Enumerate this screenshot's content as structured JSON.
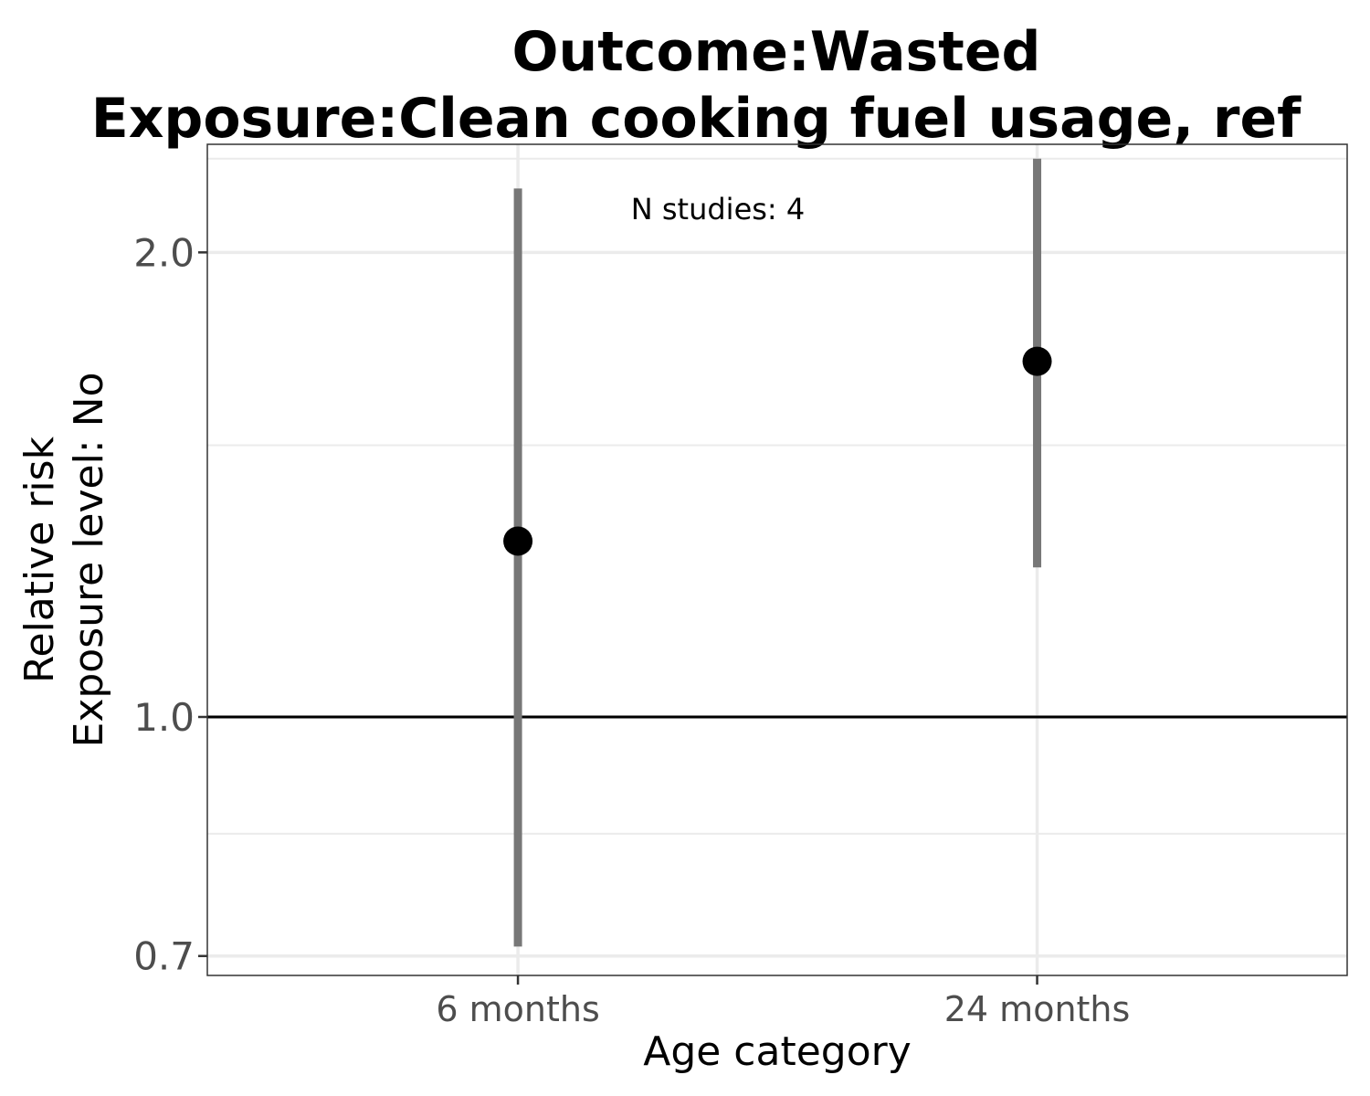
{
  "chart_data": {
    "type": "scatter",
    "title_line1": "Outcome:Wasted",
    "title_line2": "Exposure:Clean cooking fuel usage, ref",
    "xlabel": "Age category",
    "ylabel_line1": "Relative risk",
    "ylabel_line2": "Exposure level: No",
    "y_scale": "log",
    "ylim": [
      0.68,
      2.35
    ],
    "yticks": [
      {
        "value": 0.7,
        "label": "0.7"
      },
      {
        "value": 1.0,
        "label": "1.0"
      },
      {
        "value": 2.0,
        "label": "2.0"
      }
    ],
    "y_minor_gridlines": [
      0.84,
      1.5,
      2.3
    ],
    "reference_line": 1.0,
    "categories": [
      "6 months",
      "24 months"
    ],
    "points": [
      {
        "category": "6 months",
        "estimate": 1.3,
        "ci_lower": 0.71,
        "ci_upper": 2.2
      },
      {
        "category": "24 months",
        "estimate": 1.7,
        "ci_lower": 1.25,
        "ci_upper": 2.3
      }
    ],
    "annotation": "N studies: 4",
    "grid": true,
    "colors": {
      "point": "#000000",
      "ci": "#777777",
      "grid": "#ebebeb",
      "reference": "#000000",
      "panel_border": "#333333"
    }
  }
}
